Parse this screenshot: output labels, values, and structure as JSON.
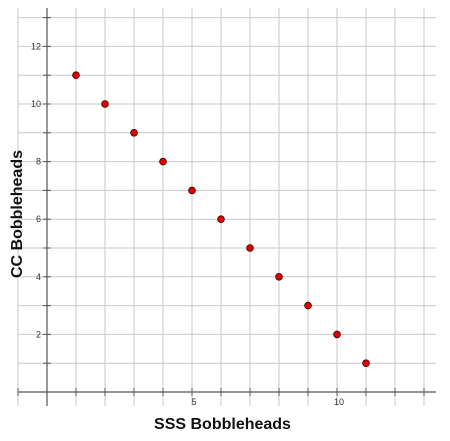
{
  "chart_data": {
    "type": "scatter",
    "xlabel": "SSS Bobbleheads",
    "ylabel": "CC Bobbleheads",
    "xlim": [
      -1,
      13
    ],
    "ylim": [
      -0.5,
      13
    ],
    "x_tick_labels": [
      5,
      10
    ],
    "y_tick_labels": [
      2,
      4,
      6,
      8,
      10,
      12
    ],
    "grid": true,
    "points": [
      {
        "x": 1,
        "y": 11
      },
      {
        "x": 2,
        "y": 10
      },
      {
        "x": 3,
        "y": 9
      },
      {
        "x": 4,
        "y": 8
      },
      {
        "x": 5,
        "y": 7
      },
      {
        "x": 6,
        "y": 6
      },
      {
        "x": 7,
        "y": 5
      },
      {
        "x": 8,
        "y": 4
      },
      {
        "x": 9,
        "y": 3
      },
      {
        "x": 10,
        "y": 2
      },
      {
        "x": 11,
        "y": 1
      }
    ],
    "colors": {
      "point_fill": "#e00000",
      "point_stroke": "#400000",
      "grid": "#c8c8c8",
      "axis": "#555555"
    }
  }
}
